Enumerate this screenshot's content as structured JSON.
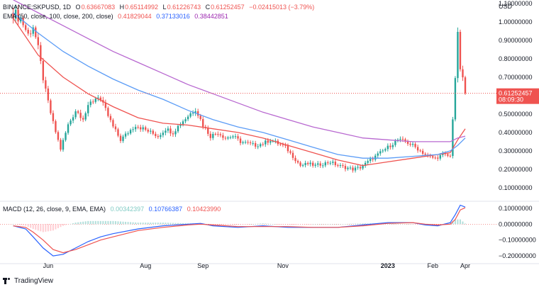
{
  "header": {
    "symbol": "BINANCE:SKPUSD, 1D",
    "o_label": "O",
    "o_value": "0.63667083",
    "h_label": "H",
    "h_value": "0.65114992",
    "l_label": "L",
    "l_value": "0.61226743",
    "c_label": "C",
    "c_value": "0.61252457",
    "change": "−0.02415013 (−3.79%)"
  },
  "ema_legend": {
    "label": "EMA (50, close, 100, close, 200, close)",
    "v50": "0.41829044",
    "v100": "0.37133016",
    "v200": "0.38442851"
  },
  "macd_legend": {
    "label": "MACD (12, 26, close, 9, EMA, EMA)",
    "hist": "0.00342397",
    "macd": "0.10766387",
    "signal": "0.10423990"
  },
  "price_badge": {
    "price": "0.61252457",
    "countdown": "08:09:30"
  },
  "branding": "TradingView",
  "colors": {
    "up": "#26a69a",
    "down": "#ef5350",
    "ema50": "#ef5350",
    "ema100": "#5b9cf6",
    "ema200": "#b868d0",
    "macd": "#2962ff",
    "signal": "#ef5350",
    "hist_up": "#b2dfdb",
    "hist_down": "#ffcdd2"
  },
  "chart_data": [
    {
      "type": "candlestick",
      "title": "BINANCE:SKPUSD, 1D",
      "currency": "USD",
      "y_ticks": [
        "1.10000000",
        "1.00000000",
        "0.90000000",
        "0.80000000",
        "0.70000000",
        "0.60000000",
        "0.50000000",
        "0.40000000",
        "0.30000000",
        "0.20000000",
        "0.10000000"
      ],
      "ylim": [
        0.03,
        1.1
      ],
      "x_ticks": [
        "Jun",
        "Aug",
        "Sep",
        "Nov",
        "2023",
        "Feb",
        "Apr"
      ],
      "last_price": 0.61252457,
      "price_series": [
        [
          0,
          1.05
        ],
        [
          3,
          1.02
        ],
        [
          6,
          0.93
        ],
        [
          8,
          0.98
        ],
        [
          10,
          0.85
        ],
        [
          13,
          0.62
        ],
        [
          16,
          0.45
        ],
        [
          19,
          0.31
        ],
        [
          22,
          0.44
        ],
        [
          25,
          0.52
        ],
        [
          28,
          0.48
        ],
        [
          31,
          0.56
        ],
        [
          34,
          0.6
        ],
        [
          37,
          0.52
        ],
        [
          40,
          0.43
        ],
        [
          43,
          0.36
        ],
        [
          46,
          0.4
        ],
        [
          49,
          0.44
        ],
        [
          52,
          0.42
        ],
        [
          55,
          0.4
        ],
        [
          58,
          0.38
        ],
        [
          61,
          0.42
        ],
        [
          64,
          0.4
        ],
        [
          67,
          0.45
        ],
        [
          70,
          0.49
        ],
        [
          73,
          0.53
        ],
        [
          76,
          0.44
        ],
        [
          79,
          0.38
        ],
        [
          82,
          0.4
        ],
        [
          85,
          0.37
        ],
        [
          88,
          0.38
        ],
        [
          91,
          0.35
        ],
        [
          94,
          0.34
        ],
        [
          97,
          0.33
        ],
        [
          100,
          0.34
        ],
        [
          103,
          0.36
        ],
        [
          106,
          0.34
        ],
        [
          109,
          0.32
        ],
        [
          112,
          0.27
        ],
        [
          115,
          0.22
        ],
        [
          118,
          0.23
        ],
        [
          121,
          0.22
        ],
        [
          124,
          0.23
        ],
        [
          127,
          0.24
        ],
        [
          130,
          0.22
        ],
        [
          133,
          0.21
        ],
        [
          136,
          0.2
        ],
        [
          139,
          0.21
        ],
        [
          142,
          0.24
        ],
        [
          145,
          0.27
        ],
        [
          148,
          0.3
        ],
        [
          151,
          0.33
        ],
        [
          154,
          0.36
        ],
        [
          157,
          0.35
        ],
        [
          160,
          0.33
        ],
        [
          163,
          0.3
        ],
        [
          166,
          0.27
        ],
        [
          169,
          0.26
        ],
        [
          172,
          0.28
        ],
        [
          175,
          0.27
        ],
        [
          176,
          0.48
        ],
        [
          177,
          0.7
        ],
        [
          178,
          0.92
        ],
        [
          179,
          0.75
        ],
        [
          180,
          0.68
        ],
        [
          181,
          0.61
        ]
      ],
      "series": [
        {
          "name": "EMA 50",
          "points": [
            [
              0,
              1.02
            ],
            [
              10,
              0.82
            ],
            [
              20,
              0.7
            ],
            [
              30,
              0.61
            ],
            [
              40,
              0.54
            ],
            [
              50,
              0.48
            ],
            [
              60,
              0.45
            ],
            [
              70,
              0.44
            ],
            [
              80,
              0.42
            ],
            [
              90,
              0.4
            ],
            [
              100,
              0.37
            ],
            [
              110,
              0.33
            ],
            [
              120,
              0.29
            ],
            [
              130,
              0.25
            ],
            [
              140,
              0.22
            ],
            [
              145,
              0.23
            ],
            [
              150,
              0.24
            ],
            [
              160,
              0.26
            ],
            [
              170,
              0.28
            ],
            [
              175,
              0.29
            ],
            [
              178,
              0.36
            ],
            [
              181,
              0.42
            ]
          ]
        },
        {
          "name": "EMA 100",
          "points": [
            [
              0,
              1.05
            ],
            [
              10,
              0.94
            ],
            [
              20,
              0.84
            ],
            [
              30,
              0.76
            ],
            [
              40,
              0.69
            ],
            [
              50,
              0.63
            ],
            [
              60,
              0.58
            ],
            [
              70,
              0.52
            ],
            [
              80,
              0.47
            ],
            [
              90,
              0.43
            ],
            [
              100,
              0.4
            ],
            [
              110,
              0.36
            ],
            [
              120,
              0.32
            ],
            [
              130,
              0.28
            ],
            [
              140,
              0.26
            ],
            [
              150,
              0.26
            ],
            [
              160,
              0.27
            ],
            [
              170,
              0.28
            ],
            [
              175,
              0.3
            ],
            [
              178,
              0.33
            ],
            [
              181,
              0.37
            ]
          ]
        },
        {
          "name": "EMA 200",
          "points": [
            [
              0,
              1.12
            ],
            [
              10,
              1.05
            ],
            [
              20,
              0.98
            ],
            [
              30,
              0.91
            ],
            [
              40,
              0.84
            ],
            [
              50,
              0.78
            ],
            [
              60,
              0.72
            ],
            [
              70,
              0.66
            ],
            [
              80,
              0.61
            ],
            [
              90,
              0.56
            ],
            [
              100,
              0.51
            ],
            [
              110,
              0.47
            ],
            [
              120,
              0.43
            ],
            [
              130,
              0.4
            ],
            [
              140,
              0.37
            ],
            [
              150,
              0.36
            ],
            [
              160,
              0.35
            ],
            [
              170,
              0.35
            ],
            [
              175,
              0.35
            ],
            [
              178,
              0.37
            ],
            [
              181,
              0.38
            ]
          ]
        }
      ]
    },
    {
      "type": "line",
      "title": "MACD (12, 26, close, 9, EMA, EMA)",
      "y_ticks": [
        "0.10000000",
        "0.00000000",
        "−0.10000000",
        "−0.20000000"
      ],
      "ylim": [
        -0.24,
        0.14
      ],
      "series": [
        {
          "name": "MACD",
          "points": [
            [
              0,
              -0.01
            ],
            [
              5,
              -0.03
            ],
            [
              8,
              -0.08
            ],
            [
              12,
              -0.15
            ],
            [
              16,
              -0.2
            ],
            [
              20,
              -0.19
            ],
            [
              25,
              -0.15
            ],
            [
              30,
              -0.11
            ],
            [
              35,
              -0.08
            ],
            [
              40,
              -0.06
            ],
            [
              50,
              -0.03
            ],
            [
              60,
              -0.01
            ],
            [
              70,
              0.0
            ],
            [
              75,
              0.005
            ],
            [
              80,
              -0.01
            ],
            [
              90,
              -0.02
            ],
            [
              100,
              -0.01
            ],
            [
              110,
              -0.02
            ],
            [
              120,
              -0.02
            ],
            [
              130,
              -0.02
            ],
            [
              140,
              -0.005
            ],
            [
              150,
              0.01
            ],
            [
              160,
              0.01
            ],
            [
              165,
              -0.005
            ],
            [
              170,
              -0.01
            ],
            [
              175,
              0.01
            ],
            [
              177,
              0.06
            ],
            [
              179,
              0.12
            ],
            [
              181,
              0.108
            ]
          ]
        },
        {
          "name": "Signal",
          "points": [
            [
              0,
              -0.01
            ],
            [
              5,
              -0.02
            ],
            [
              8,
              -0.05
            ],
            [
              12,
              -0.1
            ],
            [
              16,
              -0.16
            ],
            [
              20,
              -0.18
            ],
            [
              25,
              -0.16
            ],
            [
              30,
              -0.13
            ],
            [
              35,
              -0.1
            ],
            [
              40,
              -0.08
            ],
            [
              50,
              -0.04
            ],
            [
              60,
              -0.02
            ],
            [
              70,
              -0.005
            ],
            [
              75,
              0.0
            ],
            [
              80,
              -0.005
            ],
            [
              90,
              -0.015
            ],
            [
              100,
              -0.015
            ],
            [
              110,
              -0.015
            ],
            [
              120,
              -0.02
            ],
            [
              130,
              -0.02
            ],
            [
              140,
              -0.01
            ],
            [
              150,
              0.005
            ],
            [
              160,
              0.01
            ],
            [
              165,
              0.0
            ],
            [
              170,
              -0.005
            ],
            [
              175,
              0.0
            ],
            [
              177,
              0.03
            ],
            [
              179,
              0.09
            ],
            [
              181,
              0.104
            ]
          ]
        }
      ]
    }
  ]
}
